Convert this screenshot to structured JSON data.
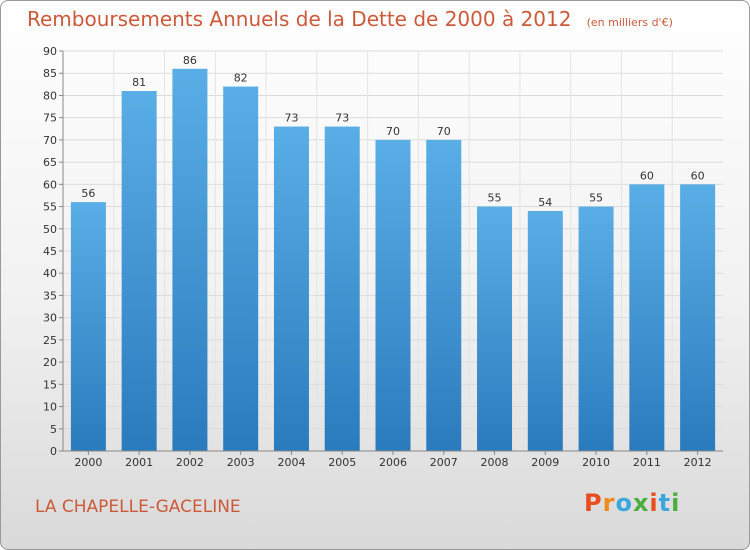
{
  "header": {
    "title": "Remboursements Annuels de la Dette de 2000 à 2012",
    "subtitle": "(en milliers d'€)"
  },
  "footer": {
    "commune": "LA CHAPELLE-GACELINE",
    "logo_text": "Proxiti",
    "logo_colors": [
      "#e84c1f",
      "#f08a1a",
      "#3ba7df",
      "#4cae3f",
      "#e84c1f",
      "#3ba7df",
      "#4cae3f"
    ]
  },
  "chart_data": {
    "type": "bar",
    "categories": [
      "2000",
      "2001",
      "2002",
      "2003",
      "2004",
      "2005",
      "2006",
      "2007",
      "2008",
      "2009",
      "2010",
      "2011",
      "2012"
    ],
    "values": [
      56,
      81,
      86,
      82,
      73,
      73,
      70,
      70,
      55,
      54,
      55,
      60,
      60
    ],
    "ylim": [
      0,
      90
    ],
    "ytick_step": 5,
    "grid": true,
    "bar_color_top": "#5aaee6",
    "bar_color_bottom": "#2a7bbd",
    "title": "Remboursements Annuels de la Dette de 2000 à 2012",
    "xlabel": "",
    "ylabel": ""
  }
}
